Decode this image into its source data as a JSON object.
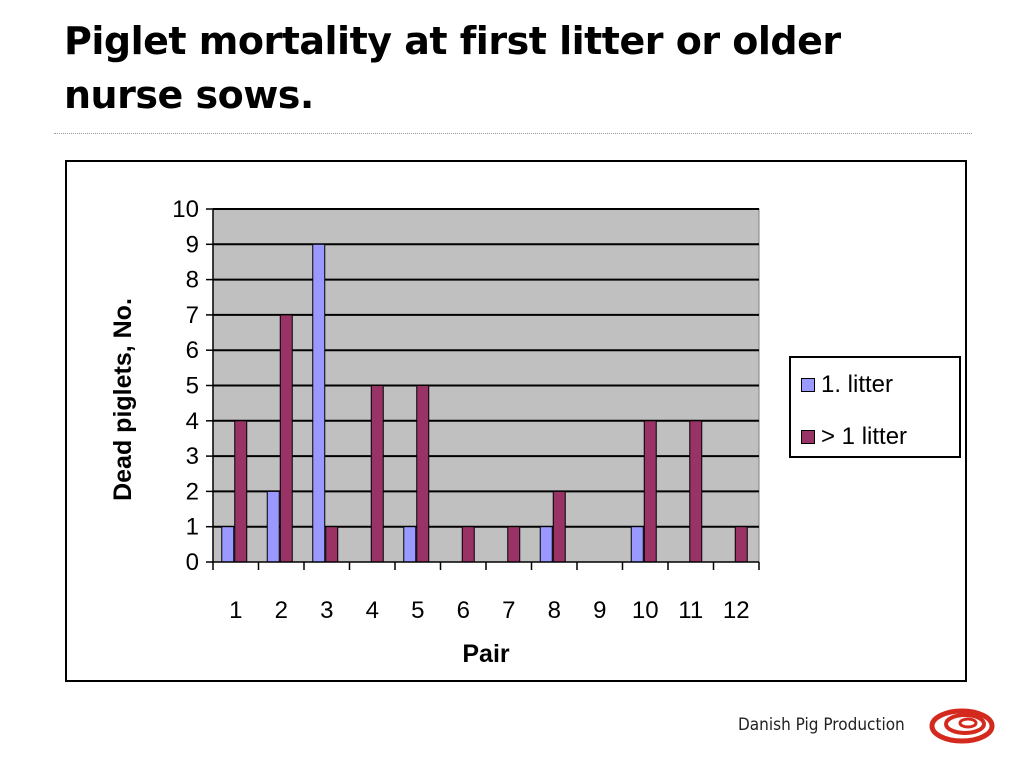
{
  "slide": {
    "title": "Piglet mortality at first litter or older nurse sows."
  },
  "chart_data": {
    "type": "bar",
    "title": "",
    "xlabel": "Pair",
    "ylabel": "Dead piglets, No.",
    "categories": [
      "1",
      "2",
      "3",
      "4",
      "5",
      "6",
      "7",
      "8",
      "9",
      "10",
      "11",
      "12"
    ],
    "series": [
      {
        "name": "1. litter",
        "values": [
          1,
          2,
          9,
          0,
          1,
          0,
          0,
          1,
          0,
          1,
          0,
          0
        ],
        "color": "#9999ff"
      },
      {
        "name": "> 1 litter",
        "values": [
          4,
          7,
          1,
          5,
          5,
          1,
          1,
          2,
          0,
          4,
          4,
          1
        ],
        "color": "#993366"
      }
    ],
    "ylim": [
      0,
      10
    ],
    "yticks": [
      "0",
      "1",
      "2",
      "3",
      "4",
      "5",
      "6",
      "7",
      "8",
      "9",
      "10"
    ],
    "grid": true,
    "plot_background": "#c0c0c0",
    "legend_position": "right"
  },
  "footer": {
    "logo_text": "Danish Pig Production",
    "logo_icon": "danish-pig-production-logo-icon",
    "logo_color": "#d42a1e"
  }
}
